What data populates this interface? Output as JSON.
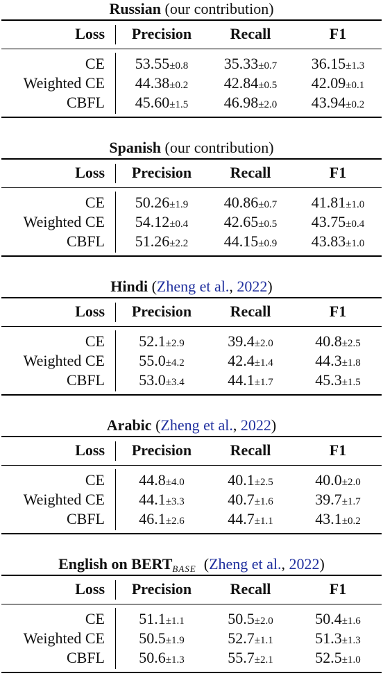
{
  "sections": [
    {
      "language": "Russian",
      "source": "(our contribution)",
      "source_link": "",
      "source_year": "",
      "model_subscript": "",
      "headers": [
        "Loss",
        "Precision",
        "Recall",
        "F1"
      ],
      "rows": [
        {
          "loss": "CE",
          "precision": {
            "mean": "53.55",
            "std": "±0.8"
          },
          "recall": {
            "mean": "35.33",
            "std": "±0.7"
          },
          "f1": {
            "mean": "36.15",
            "std": "±1.3"
          }
        },
        {
          "loss": "Weighted CE",
          "precision": {
            "mean": "44.38",
            "std": "±0.2"
          },
          "recall": {
            "mean": "42.84",
            "std": "±0.5"
          },
          "f1": {
            "mean": "42.09",
            "std": "±0.1"
          }
        },
        {
          "loss": "CBFL",
          "precision": {
            "mean": "45.60",
            "std": "±1.5"
          },
          "recall": {
            "mean": "46.98",
            "std": "±2.0"
          },
          "f1": {
            "mean": "43.94",
            "std": "±0.2"
          }
        }
      ]
    },
    {
      "language": "Spanish",
      "source": "(our contribution)",
      "source_link": "",
      "source_year": "",
      "model_subscript": "",
      "headers": [
        "Loss",
        "Precision",
        "Recall",
        "F1"
      ],
      "rows": [
        {
          "loss": "CE",
          "precision": {
            "mean": "50.26",
            "std": "±1.9"
          },
          "recall": {
            "mean": "40.86",
            "std": "±0.7"
          },
          "f1": {
            "mean": "41.81",
            "std": "±1.0"
          }
        },
        {
          "loss": "Weighted CE",
          "precision": {
            "mean": "54.12",
            "std": "±0.4"
          },
          "recall": {
            "mean": "42.65",
            "std": "±0.5"
          },
          "f1": {
            "mean": "43.75",
            "std": "±0.4"
          }
        },
        {
          "loss": "CBFL",
          "precision": {
            "mean": "51.26",
            "std": "±2.2"
          },
          "recall": {
            "mean": "44.15",
            "std": "±0.9"
          },
          "f1": {
            "mean": "43.83",
            "std": "±1.0"
          }
        }
      ]
    },
    {
      "language": "Hindi",
      "source": "",
      "source_link": "Zheng et al.",
      "source_year": "2022",
      "model_subscript": "",
      "headers": [
        "Loss",
        "Precision",
        "Recall",
        "F1"
      ],
      "rows": [
        {
          "loss": "CE",
          "precision": {
            "mean": "52.1",
            "std": "±2.9"
          },
          "recall": {
            "mean": "39.4",
            "std": "±2.0"
          },
          "f1": {
            "mean": "40.8",
            "std": "±2.5"
          }
        },
        {
          "loss": "Weighted CE",
          "precision": {
            "mean": "55.0",
            "std": "±4.2"
          },
          "recall": {
            "mean": "42.4",
            "std": "±1.4"
          },
          "f1": {
            "mean": "44.3",
            "std": "±1.8"
          }
        },
        {
          "loss": "CBFL",
          "precision": {
            "mean": "53.0",
            "std": "±3.4"
          },
          "recall": {
            "mean": "44.1",
            "std": "±1.7"
          },
          "f1": {
            "mean": "45.3",
            "std": "±1.5"
          }
        }
      ]
    },
    {
      "language": "Arabic",
      "source": "",
      "source_link": "Zheng et al.",
      "source_year": "2022",
      "model_subscript": "",
      "headers": [
        "Loss",
        "Precision",
        "Recall",
        "F1"
      ],
      "rows": [
        {
          "loss": "CE",
          "precision": {
            "mean": "44.8",
            "std": "±4.0"
          },
          "recall": {
            "mean": "40.1",
            "std": "±2.5"
          },
          "f1": {
            "mean": "40.0",
            "std": "±2.0"
          }
        },
        {
          "loss": "Weighted CE",
          "precision": {
            "mean": "44.1",
            "std": "±3.3"
          },
          "recall": {
            "mean": "40.7",
            "std": "±1.6"
          },
          "f1": {
            "mean": "39.7",
            "std": "±1.7"
          }
        },
        {
          "loss": "CBFL",
          "precision": {
            "mean": "46.1",
            "std": "±2.6"
          },
          "recall": {
            "mean": "44.7",
            "std": "±1.1"
          },
          "f1": {
            "mean": "43.1",
            "std": "±0.2"
          }
        }
      ]
    },
    {
      "language": "English on BERT",
      "source": "",
      "source_link": "Zheng et al.",
      "source_year": "2022",
      "model_subscript": "BASE",
      "headers": [
        "Loss",
        "Precision",
        "Recall",
        "F1"
      ],
      "rows": [
        {
          "loss": "CE",
          "precision": {
            "mean": "51.1",
            "std": "±1.1"
          },
          "recall": {
            "mean": "50.5",
            "std": "±2.0"
          },
          "f1": {
            "mean": "50.4",
            "std": "±1.6"
          }
        },
        {
          "loss": "Weighted CE",
          "precision": {
            "mean": "50.5",
            "std": "±1.9"
          },
          "recall": {
            "mean": "52.7",
            "std": "±1.1"
          },
          "f1": {
            "mean": "51.3",
            "std": "±1.3"
          }
        },
        {
          "loss": "CBFL",
          "precision": {
            "mean": "50.6",
            "std": "±1.3"
          },
          "recall": {
            "mean": "55.7",
            "std": "±2.1"
          },
          "f1": {
            "mean": "52.5",
            "std": "±1.0"
          }
        }
      ]
    }
  ]
}
